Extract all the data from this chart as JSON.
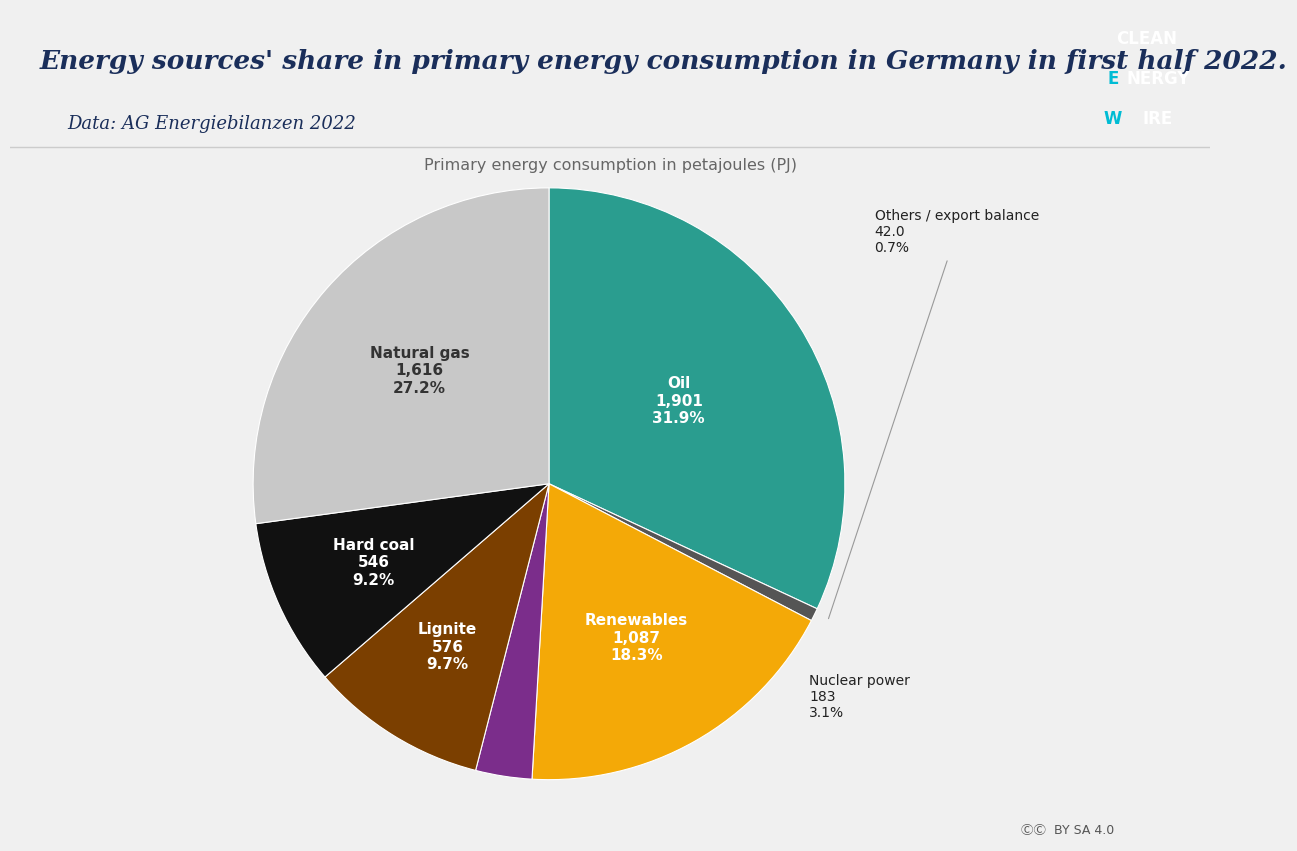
{
  "title": "Energy sources' share in primary energy consumption in Germany in first half 2022.",
  "subtitle": "Data: AG Energiebilanzen 2022",
  "chart_label": "Primary energy consumption in petajoules (PJ)",
  "background_color": "#f0f0f0",
  "header_background": "#ffffff",
  "slices": [
    {
      "label": "Oil",
      "value": 1901,
      "pct": "31.9%",
      "display": "1,901",
      "color": "#2a9d8f"
    },
    {
      "label": "Others / export balance",
      "value": 42,
      "pct": "0.7%",
      "display": "42.0",
      "color": "#555555"
    },
    {
      "label": "Renewables",
      "value": 1087,
      "pct": "18.3%",
      "display": "1,087",
      "color": "#f4a907"
    },
    {
      "label": "Nuclear power",
      "value": 183,
      "pct": "3.1%",
      "display": "183",
      "color": "#7b2d8b"
    },
    {
      "label": "Lignite",
      "value": 576,
      "pct": "9.7%",
      "display": "576",
      "color": "#7b3f00"
    },
    {
      "label": "Hard coal",
      "value": 546,
      "pct": "9.2%",
      "display": "546",
      "color": "#111111"
    },
    {
      "label": "Natural gas",
      "value": 1616,
      "pct": "27.2%",
      "display": "1,616",
      "color": "#c8c8c8"
    }
  ],
  "title_color": "#1a2e5a",
  "title_fontsize": 19,
  "subtitle_fontsize": 13,
  "startangle": 90,
  "logo_bg": "#1a2e5a",
  "logo_cyan": "#00bcd4"
}
